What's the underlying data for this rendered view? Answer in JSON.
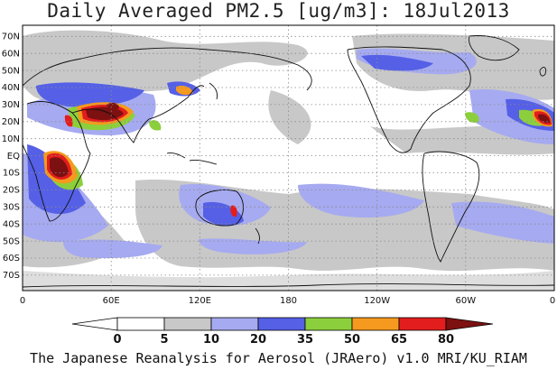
{
  "title": "Daily Averaged PM2.5 [ug/m3]: 18Jul2013",
  "footer": "The Japanese Reanalysis for Aerosol (JRAero) v1.0 MRI/KU_RIAM",
  "lat_labels": [
    "70N",
    "60N",
    "50N",
    "40N",
    "30N",
    "20N",
    "10N",
    "EQ",
    "10S",
    "20S",
    "30S",
    "40S",
    "50S",
    "60S",
    "70S"
  ],
  "lon_labels": [
    "0",
    "60E",
    "120E",
    "180",
    "120W",
    "60W",
    "0"
  ],
  "colorbar": {
    "levels": [
      "0",
      "5",
      "10",
      "20",
      "35",
      "50",
      "65",
      "80"
    ],
    "colors": [
      "#ffffff",
      "#c8c8c8",
      "#a6aaf0",
      "#5560e6",
      "#8ccf3c",
      "#f59a1e",
      "#e31d1d",
      "#7d1010"
    ]
  }
}
